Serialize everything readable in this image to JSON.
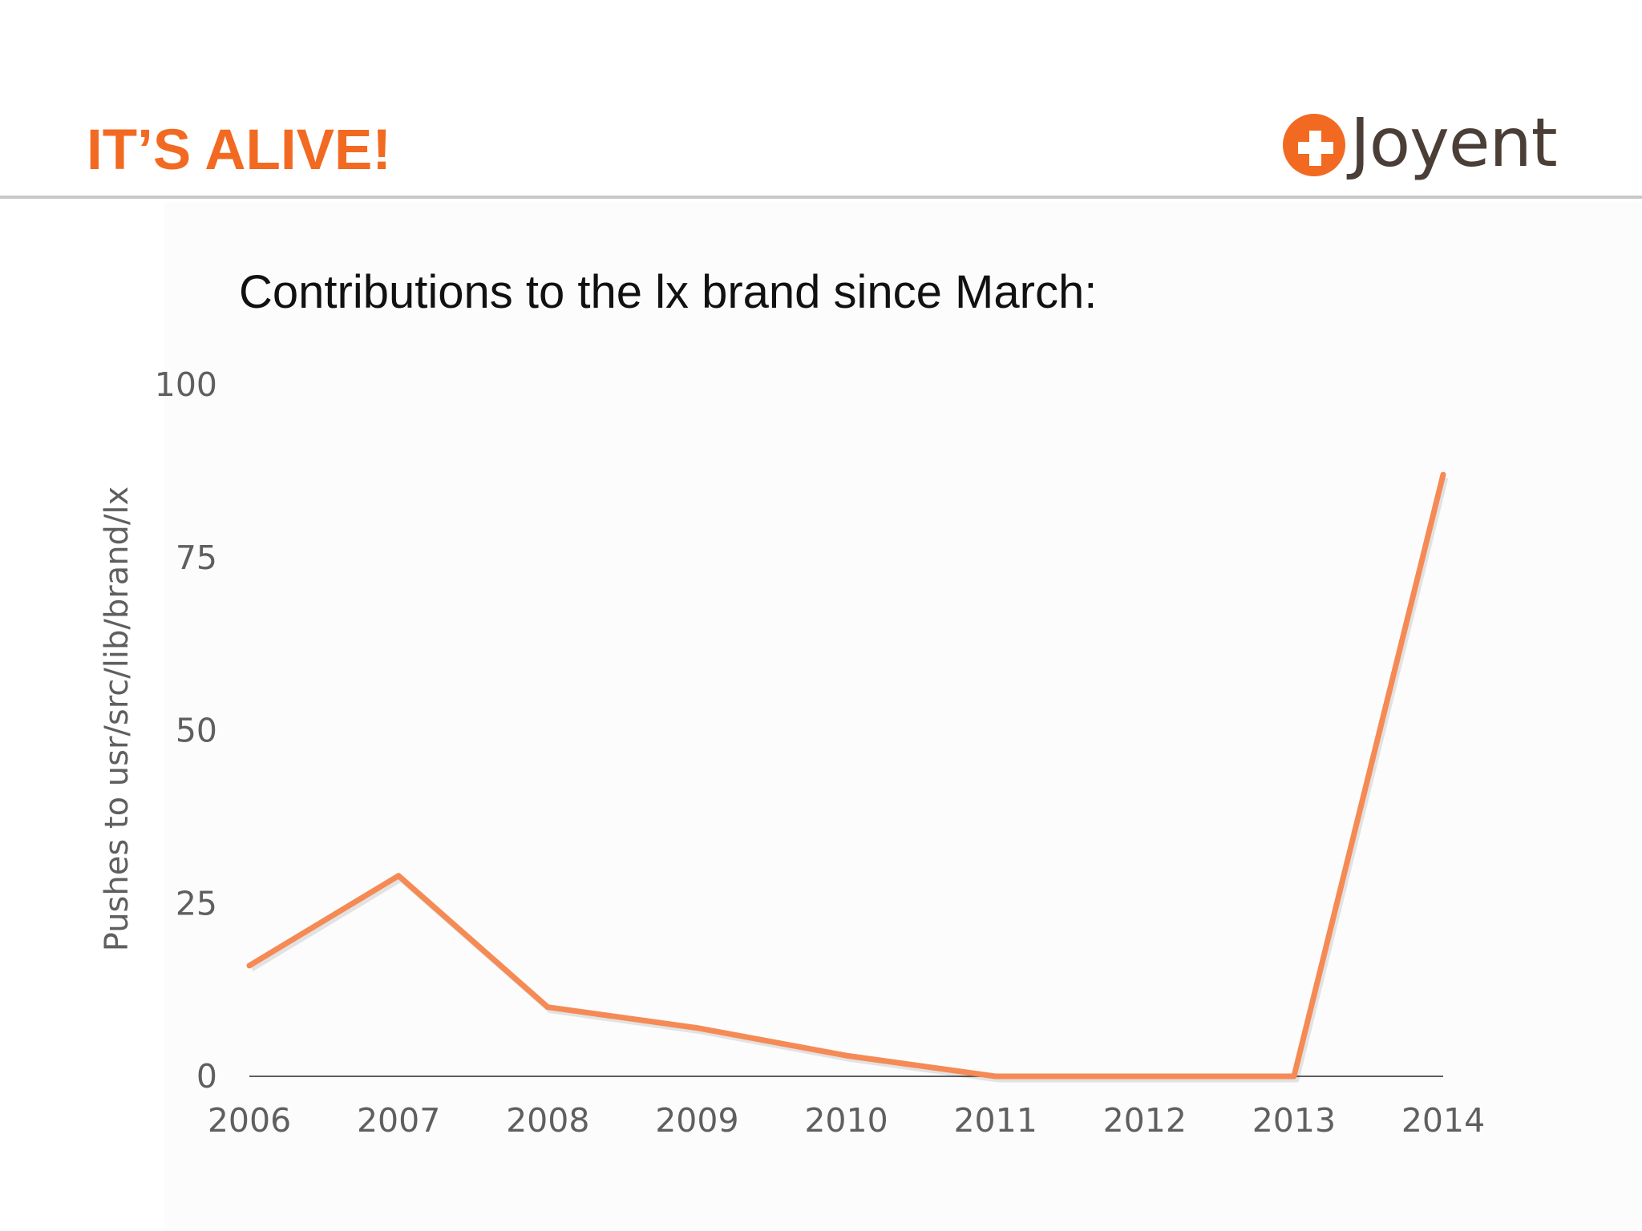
{
  "slide": {
    "title": "IT’S ALIVE!",
    "brand_color": "#f26a21",
    "logo": {
      "wordmark": "Joyent",
      "wordmark_color": "#4a3e37",
      "icon": "plus-circle-icon"
    }
  },
  "chart_data": {
    "type": "line",
    "title": "Contributions to the lx brand since March:",
    "xlabel": "",
    "ylabel": "Pushes to usr/src/lib/brand/lx",
    "categories": [
      "2006",
      "2007",
      "2008",
      "2009",
      "2010",
      "2011",
      "2012",
      "2013",
      "2014"
    ],
    "series": [
      {
        "values": [
          16,
          29,
          10,
          7,
          3,
          0,
          0,
          0,
          87
        ],
        "color": "#f58a55"
      }
    ],
    "yticks": [
      "0",
      "25",
      "50",
      "75",
      "100"
    ],
    "ylim": [
      0,
      100
    ],
    "grid": false,
    "legend": "none",
    "axis_color": "#5f5f5f"
  }
}
